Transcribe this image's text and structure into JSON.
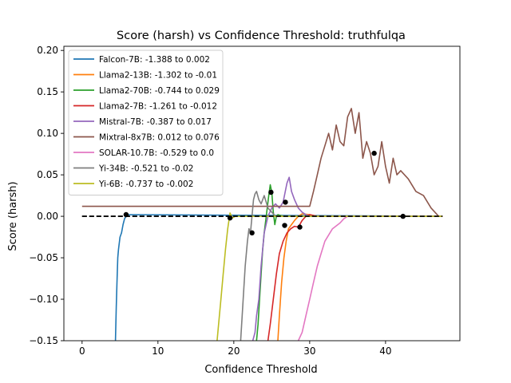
{
  "chart_data": {
    "type": "line",
    "title": "Score (harsh) vs Confidence Threshold: truthfulqa",
    "xlabel": "Confidence Threshold",
    "ylabel": "Score (harsh)",
    "xlim": [
      -2.4,
      49.8
    ],
    "ylim": [
      -0.15,
      0.205
    ],
    "xticks": [
      0,
      10,
      20,
      30,
      40
    ],
    "xtick_labels": [
      "0",
      "10",
      "20",
      "30",
      "40"
    ],
    "yticks": [
      -0.15,
      -0.1,
      -0.05,
      0.0,
      0.05,
      0.1,
      0.15,
      0.2
    ],
    "ytick_labels": [
      "−0.15",
      "−0.10",
      "−0.05",
      "0.00",
      "0.05",
      "0.10",
      "0.15",
      "0.20"
    ],
    "grid": false,
    "legend_position": "upper-left",
    "baseline": {
      "y": 0,
      "x": [
        0,
        47.5
      ],
      "style": "dashed",
      "color": "#000000"
    },
    "series": [
      {
        "name": "Falcon-7B: -1.388 to 0.002",
        "color": "#1f77b4",
        "x": [
          4.4,
          4.5,
          4.6,
          4.7,
          4.8,
          5.0,
          5.2,
          5.4,
          5.6,
          5.8,
          6.0,
          47.5
        ],
        "y": [
          -0.15,
          -0.11,
          -0.08,
          -0.05,
          -0.04,
          -0.025,
          -0.02,
          -0.01,
          -0.003,
          0.0,
          0.002,
          0.0
        ],
        "marker": {
          "x": 5.8,
          "y": 0.002
        }
      },
      {
        "name": "Llama2-13B: -1.302 to -0.01",
        "color": "#ff7f0e",
        "x": [
          25.8,
          26.0,
          26.3,
          26.6,
          26.9,
          27.2,
          27.6,
          28.0,
          28.5,
          29.0,
          30.0,
          31.0,
          47.5
        ],
        "y": [
          -0.15,
          -0.12,
          -0.08,
          -0.05,
          -0.03,
          -0.015,
          -0.01,
          -0.005,
          0.0,
          0.003,
          0.002,
          0.0,
          0.0
        ],
        "marker": {
          "x": 26.7,
          "y": -0.011
        }
      },
      {
        "name": "Llama2-70B: -0.744 to 0.029",
        "color": "#2ca02c",
        "x": [
          23.0,
          23.2,
          23.4,
          23.6,
          23.8,
          24.0,
          24.2,
          24.4,
          24.6,
          24.8,
          25.0,
          25.2,
          25.4,
          25.6,
          25.8,
          26.5,
          47.5
        ],
        "y": [
          -0.15,
          -0.13,
          -0.1,
          -0.07,
          -0.04,
          -0.02,
          -0.005,
          0.01,
          0.025,
          0.038,
          0.029,
          0.005,
          -0.01,
          0.0,
          0.002,
          0.0,
          0.0
        ],
        "marker": {
          "x": 24.9,
          "y": 0.029
        }
      },
      {
        "name": "Llama2-7B: -1.261 to -0.012",
        "color": "#d62728",
        "x": [
          24.5,
          24.8,
          25.2,
          25.6,
          26.0,
          26.5,
          27.0,
          27.5,
          28.0,
          28.5,
          29.0,
          29.5,
          30.0,
          31.0,
          32.0,
          47.5
        ],
        "y": [
          -0.15,
          -0.13,
          -0.1,
          -0.07,
          -0.045,
          -0.03,
          -0.02,
          -0.015,
          -0.012,
          -0.013,
          -0.005,
          0.0,
          0.002,
          0.0,
          0.0,
          0.0
        ],
        "marker": {
          "x": 28.7,
          "y": -0.013
        }
      },
      {
        "name": "Mistral-7B: -0.387 to 0.017",
        "color": "#9467bd",
        "x": [
          22.5,
          22.8,
          23.0,
          23.3,
          23.6,
          24.0,
          24.5,
          25.0,
          25.5,
          26.0,
          26.5,
          27.0,
          27.3,
          27.6,
          28.0,
          28.5,
          29.0,
          29.5,
          30.0,
          47.5
        ],
        "y": [
          -0.15,
          -0.14,
          -0.12,
          -0.1,
          -0.06,
          -0.02,
          0.0,
          0.01,
          0.015,
          0.01,
          0.017,
          0.04,
          0.047,
          0.03,
          0.02,
          0.01,
          0.005,
          0.002,
          0.0,
          0.0
        ],
        "marker": {
          "x": 26.8,
          "y": 0.017
        }
      },
      {
        "name": "Mixtral-8x7B: 0.012 to 0.076",
        "color": "#8c564b",
        "x": [
          0,
          30.0,
          30.5,
          31.0,
          31.5,
          32.0,
          32.5,
          33.0,
          33.5,
          34.0,
          34.5,
          35.0,
          35.5,
          36.0,
          36.5,
          37.0,
          37.5,
          38.0,
          38.5,
          39.0,
          39.5,
          40.0,
          40.5,
          41.0,
          41.5,
          42.0,
          43.0,
          44.0,
          45.0,
          46.0,
          47.0,
          47.5
        ],
        "y": [
          0.012,
          0.012,
          0.03,
          0.05,
          0.07,
          0.085,
          0.1,
          0.08,
          0.11,
          0.09,
          0.085,
          0.12,
          0.13,
          0.1,
          0.125,
          0.07,
          0.09,
          0.076,
          0.05,
          0.06,
          0.09,
          0.06,
          0.04,
          0.07,
          0.05,
          0.055,
          0.045,
          0.03,
          0.025,
          0.01,
          0.0,
          0.0
        ],
        "marker": {
          "x": 38.5,
          "y": 0.076
        }
      },
      {
        "name": "SOLAR-10.7B: -0.529 to 0.0",
        "color": "#e377c2",
        "x": [
          28.5,
          29.0,
          29.5,
          30.0,
          30.5,
          31.0,
          31.5,
          32.0,
          33.0,
          34.0,
          34.5,
          35.0,
          36.0,
          38.0,
          40.0,
          42.0,
          44.0,
          46.0,
          47.5
        ],
        "y": [
          -0.15,
          -0.14,
          -0.12,
          -0.1,
          -0.08,
          -0.06,
          -0.045,
          -0.03,
          -0.015,
          -0.008,
          -0.003,
          0.0,
          0.0,
          0.0,
          0.0,
          0.0,
          0.0,
          0.0,
          0.0
        ],
        "marker": {
          "x": 42.3,
          "y": 0.0
        }
      },
      {
        "name": "Yi-34B: -0.521 to -0.02",
        "color": "#7f7f7f",
        "x": [
          20.9,
          21.1,
          21.3,
          21.5,
          21.8,
          22.0,
          22.2,
          22.4,
          22.6,
          22.8,
          23.0,
          23.3,
          23.6,
          24.0,
          24.5,
          25.0,
          25.5,
          26.0,
          27.0,
          47.5
        ],
        "y": [
          -0.15,
          -0.12,
          -0.09,
          -0.06,
          -0.03,
          -0.015,
          -0.02,
          0.0,
          0.02,
          0.027,
          0.03,
          0.02,
          0.015,
          0.025,
          0.01,
          0.005,
          0.0,
          0.0,
          0.0,
          0.0
        ],
        "marker": {
          "x": 22.4,
          "y": -0.02
        }
      },
      {
        "name": "Yi-6B: -0.737 to -0.002",
        "color": "#bcbd22",
        "x": [
          17.8,
          18.0,
          18.3,
          18.6,
          18.9,
          19.2,
          19.5,
          19.8,
          20.2,
          21.0,
          47.5
        ],
        "y": [
          -0.15,
          -0.13,
          -0.1,
          -0.07,
          -0.04,
          -0.015,
          0.004,
          -0.002,
          0.0,
          0.0,
          0.0
        ],
        "marker": {
          "x": 19.5,
          "y": -0.002
        }
      }
    ]
  }
}
